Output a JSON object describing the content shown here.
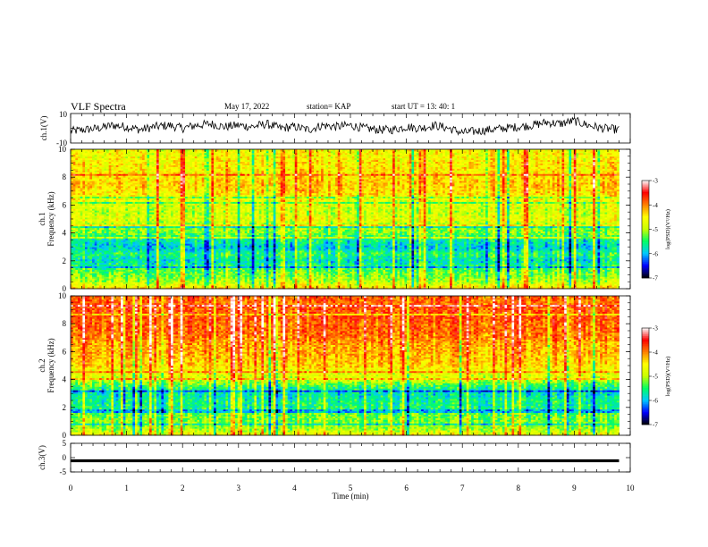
{
  "header": {
    "title": "VLF Spectra",
    "date": "May 17, 2022",
    "station": "station= KAP",
    "start_ut": "start  UT  =   13: 40: 1"
  },
  "chart_data": [
    {
      "type": "line",
      "panel": "ch1-waveform",
      "ylabel": "ch.1(V)",
      "ylim": [
        -10,
        10
      ],
      "yticks": [
        "10",
        "-10"
      ],
      "xlim": [
        0,
        10
      ],
      "x": [
        0,
        0.25,
        0.5,
        0.75,
        1,
        1.25,
        1.5,
        1.75,
        2,
        2.25,
        2.5,
        2.75,
        3,
        3.25,
        3.5,
        3.75,
        4,
        4.25,
        4.5,
        4.75,
        5,
        5.25,
        5.5,
        5.75,
        6,
        6.25,
        6.5,
        6.75,
        7,
        7.25,
        7.5,
        7.75,
        8,
        8.25,
        8.5,
        8.75,
        9,
        9.25,
        9.5,
        9.8
      ],
      "y": [
        -2,
        -1,
        0,
        2,
        1,
        -1,
        1,
        2,
        0,
        2,
        3,
        1,
        2,
        1,
        3,
        0,
        1,
        -1,
        2,
        1,
        2,
        0,
        -1,
        -1,
        1,
        0,
        2,
        0,
        -3,
        -2,
        -1,
        0,
        1,
        2,
        4,
        3,
        5,
        2,
        0,
        -1
      ],
      "color": "#000000"
    },
    {
      "type": "heatmap",
      "panel": "ch1-spectrogram",
      "ylabel": "ch.1\nFrequency (kHz)",
      "ylim": [
        0,
        10
      ],
      "yticks": [
        "0",
        "2",
        "4",
        "6",
        "8",
        "10"
      ],
      "xlim": [
        0,
        10
      ],
      "frequency_kHz": [
        0,
        0.5,
        1,
        1.5,
        2,
        2.5,
        3,
        3.5,
        4,
        4.5,
        5,
        5.5,
        6,
        6.5,
        7,
        7.5,
        8,
        8.5,
        9,
        9.5,
        10
      ],
      "level_profile": [
        -4.3,
        -5,
        -5.2,
        -5.4,
        -5.8,
        -5.5,
        -5.9,
        -5.7,
        -5.2,
        -5.1,
        -4.7,
        -4.9,
        -4.8,
        -4.6,
        -4.4,
        -4.3,
        -4.4,
        -4.5,
        -4.5,
        -4.6,
        -4.6
      ],
      "data_end_min": 9.8,
      "colorbar": {
        "label": "log(PSD)(V²/Hz)",
        "range": [
          -7,
          -3
        ],
        "ticks": [
          "-3",
          "-4",
          "-5",
          "-6",
          "-7"
        ],
        "colors": [
          "#000000",
          "#0000ff",
          "#00c8ff",
          "#00ff64",
          "#c8ff00",
          "#ffff00",
          "#ff8000",
          "#ff0000",
          "#ffffff"
        ]
      }
    },
    {
      "type": "heatmap",
      "panel": "ch2-spectrogram",
      "ylabel": "ch.2\nFrequency (kHz)",
      "ylim": [
        0,
        10
      ],
      "yticks": [
        "0",
        "2",
        "4",
        "6",
        "8",
        "10"
      ],
      "xlim": [
        0,
        10
      ],
      "frequency_kHz": [
        0,
        0.5,
        1,
        1.5,
        2,
        2.5,
        3,
        3.5,
        4,
        4.5,
        5,
        5.5,
        6,
        6.5,
        7,
        7.5,
        8,
        8.5,
        9,
        9.5,
        10
      ],
      "level_profile": [
        -4.6,
        -5.1,
        -5.2,
        -5.3,
        -5.6,
        -5.6,
        -5.8,
        -5.5,
        -4.9,
        -4.7,
        -4.4,
        -4.3,
        -4.2,
        -4.2,
        -4,
        -3.9,
        -3.9,
        -3.8,
        -3.8,
        -3.9,
        -3.9
      ],
      "data_end_min": 9.8,
      "colorbar": {
        "label": "log(PSD)(V²/Hz)",
        "range": [
          -7,
          -3
        ],
        "ticks": [
          "-3",
          "-4",
          "-5",
          "-6",
          "-7"
        ],
        "colors": [
          "#000000",
          "#0000ff",
          "#00c8ff",
          "#00ff64",
          "#c8ff00",
          "#ffff00",
          "#ff8000",
          "#ff0000",
          "#ffffff"
        ]
      }
    },
    {
      "type": "line",
      "panel": "ch3-waveform",
      "ylabel": "ch.3(V)",
      "ylim": [
        -5,
        5
      ],
      "yticks": [
        "5",
        "0",
        "-5"
      ],
      "xlim": [
        0,
        10
      ],
      "x": [
        0,
        9.8
      ],
      "y": [
        -1.1,
        -1.1
      ],
      "band": [
        -1.6,
        -0.6
      ],
      "color": "#000000"
    }
  ],
  "x_axis": {
    "label": "Time (min)",
    "ticks": [
      "0",
      "1",
      "2",
      "3",
      "4",
      "5",
      "6",
      "7",
      "8",
      "9",
      "10"
    ]
  }
}
